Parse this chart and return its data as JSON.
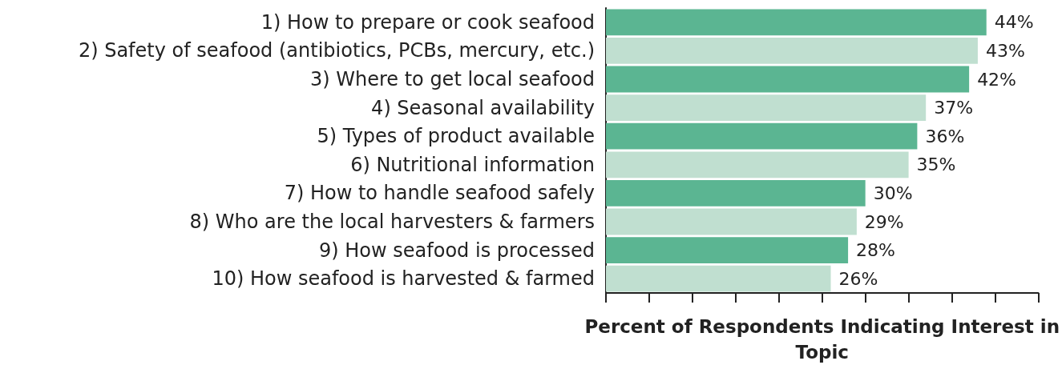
{
  "chart_data": {
    "type": "bar",
    "orientation": "horizontal",
    "xlabel": "Percent of Respondents Indicating Interest in Topic",
    "categories": [
      "1) How to prepare or cook seafood",
      "2) Safety of seafood (antibiotics, PCBs, mercury, etc.)",
      "3) Where to get local seafood",
      "4) Seasonal availability",
      "5) Types of product available",
      "6) Nutritional information",
      "7) How to handle seafood safely",
      "8) Who are the local harvesters & farmers",
      "9) How seafood is processed",
      "10) How seafood is harvested & farmed"
    ],
    "values": [
      44,
      43,
      42,
      37,
      36,
      35,
      30,
      29,
      28,
      26
    ],
    "value_labels": [
      "44%",
      "43%",
      "42%",
      "37%",
      "36%",
      "35%",
      "30%",
      "29%",
      "28%",
      "26%"
    ],
    "colors": [
      "#5bb592",
      "#c0dfd0",
      "#5bb592",
      "#c0dfd0",
      "#5bb592",
      "#c0dfd0",
      "#5bb592",
      "#c0dfd0",
      "#5bb592",
      "#c0dfd0"
    ],
    "xlim": [
      0,
      50
    ],
    "xticks": [
      {
        "value": 0,
        "label": null
      },
      {
        "value": 5,
        "label": null
      },
      {
        "value": 10,
        "label": null
      },
      {
        "value": 15,
        "label": null
      },
      {
        "value": 20,
        "label": null
      },
      {
        "value": 25,
        "label": null
      },
      {
        "value": 30,
        "label": null
      },
      {
        "value": 35,
        "label": null
      },
      {
        "value": 40,
        "label": null
      },
      {
        "value": 45,
        "label": null
      },
      {
        "value": 50,
        "label": null
      }
    ],
    "tick_labels": "y",
    "grid": false
  }
}
